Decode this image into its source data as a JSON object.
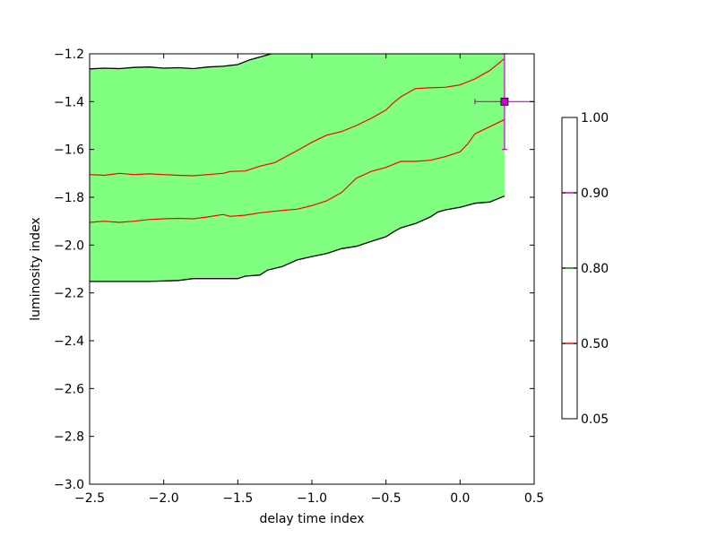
{
  "chart_data": {
    "type": "area",
    "title": "",
    "xlabel": "delay time index",
    "ylabel": "luminosity index",
    "xlim": [
      -2.5,
      0.5
    ],
    "ylim": [
      -3.0,
      -1.2
    ],
    "xticks": [
      -2.5,
      -2.0,
      -1.5,
      -1.0,
      -0.5,
      0.0,
      0.5
    ],
    "xtick_labels": [
      "−2.5",
      "−2.0",
      "−1.5",
      "−1.0",
      "−0.5",
      "0.0",
      "0.5"
    ],
    "yticks": [
      -3.0,
      -2.8,
      -2.6,
      -2.4,
      -2.2,
      -2.0,
      -1.8,
      -1.6,
      -1.4,
      -1.2
    ],
    "ytick_labels": [
      "−3.0",
      "−2.8",
      "−2.6",
      "−2.4",
      "−2.2",
      "−2.0",
      "−1.8",
      "−1.6",
      "−1.4",
      "−1.2"
    ],
    "grid": false,
    "fill_color": "#80ff80",
    "outer_contour_color": "#000000",
    "inner_contour_color": "#ff0000",
    "outer_upper": [
      [
        -2.5,
        -1.263
      ],
      [
        -2.4,
        -1.26
      ],
      [
        -2.3,
        -1.262
      ],
      [
        -2.2,
        -1.257
      ],
      [
        -2.1,
        -1.255
      ],
      [
        -2.0,
        -1.26
      ],
      [
        -1.9,
        -1.258
      ],
      [
        -1.8,
        -1.262
      ],
      [
        -1.7,
        -1.255
      ],
      [
        -1.6,
        -1.252
      ],
      [
        -1.5,
        -1.245
      ],
      [
        -1.42,
        -1.225
      ],
      [
        -1.3,
        -1.205
      ],
      [
        -1.25,
        -1.195
      ]
    ],
    "outer_lower": [
      [
        -2.5,
        -2.152
      ],
      [
        -2.3,
        -2.152
      ],
      [
        -2.1,
        -2.152
      ],
      [
        -1.9,
        -2.148
      ],
      [
        -1.8,
        -2.14
      ],
      [
        -1.6,
        -2.14
      ],
      [
        -1.5,
        -2.14
      ],
      [
        -1.45,
        -2.13
      ],
      [
        -1.35,
        -2.125
      ],
      [
        -1.3,
        -2.105
      ],
      [
        -1.2,
        -2.09
      ],
      [
        -1.1,
        -2.062
      ],
      [
        -1.0,
        -2.048
      ],
      [
        -0.9,
        -2.035
      ],
      [
        -0.8,
        -2.015
      ],
      [
        -0.7,
        -2.005
      ],
      [
        -0.6,
        -1.985
      ],
      [
        -0.5,
        -1.965
      ],
      [
        -0.45,
        -1.945
      ],
      [
        -0.4,
        -1.928
      ],
      [
        -0.3,
        -1.91
      ],
      [
        -0.2,
        -1.882
      ],
      [
        -0.15,
        -1.862
      ],
      [
        -0.1,
        -1.853
      ],
      [
        0.0,
        -1.842
      ],
      [
        0.1,
        -1.825
      ],
      [
        0.2,
        -1.82
      ],
      [
        0.3,
        -1.795
      ]
    ],
    "inner_upper": [
      [
        -2.5,
        -1.705
      ],
      [
        -2.4,
        -1.708
      ],
      [
        -2.3,
        -1.7
      ],
      [
        -2.2,
        -1.705
      ],
      [
        -2.1,
        -1.702
      ],
      [
        -2.0,
        -1.705
      ],
      [
        -1.9,
        -1.708
      ],
      [
        -1.8,
        -1.71
      ],
      [
        -1.7,
        -1.705
      ],
      [
        -1.6,
        -1.7
      ],
      [
        -1.55,
        -1.692
      ],
      [
        -1.45,
        -1.69
      ],
      [
        -1.35,
        -1.67
      ],
      [
        -1.25,
        -1.655
      ],
      [
        -1.1,
        -1.605
      ],
      [
        -1.0,
        -1.57
      ],
      [
        -0.9,
        -1.54
      ],
      [
        -0.8,
        -1.525
      ],
      [
        -0.7,
        -1.5
      ],
      [
        -0.6,
        -1.47
      ],
      [
        -0.5,
        -1.435
      ],
      [
        -0.45,
        -1.405
      ],
      [
        -0.4,
        -1.38
      ],
      [
        -0.3,
        -1.345
      ],
      [
        -0.2,
        -1.342
      ],
      [
        -0.1,
        -1.34
      ],
      [
        0.0,
        -1.33
      ],
      [
        0.1,
        -1.305
      ],
      [
        0.2,
        -1.27
      ],
      [
        0.3,
        -1.22
      ]
    ],
    "inner_lower": [
      [
        -2.5,
        -1.905
      ],
      [
        -2.4,
        -1.9
      ],
      [
        -2.3,
        -1.905
      ],
      [
        -2.2,
        -1.9
      ],
      [
        -2.1,
        -1.893
      ],
      [
        -2.0,
        -1.89
      ],
      [
        -1.9,
        -1.888
      ],
      [
        -1.8,
        -1.89
      ],
      [
        -1.7,
        -1.882
      ],
      [
        -1.6,
        -1.872
      ],
      [
        -1.55,
        -1.88
      ],
      [
        -1.45,
        -1.875
      ],
      [
        -1.35,
        -1.865
      ],
      [
        -1.2,
        -1.855
      ],
      [
        -1.1,
        -1.85
      ],
      [
        -1.0,
        -1.835
      ],
      [
        -0.9,
        -1.815
      ],
      [
        -0.8,
        -1.78
      ],
      [
        -0.7,
        -1.72
      ],
      [
        -0.6,
        -1.692
      ],
      [
        -0.5,
        -1.675
      ],
      [
        -0.4,
        -1.65
      ],
      [
        -0.3,
        -1.65
      ],
      [
        -0.2,
        -1.645
      ],
      [
        -0.1,
        -1.63
      ],
      [
        0.0,
        -1.61
      ],
      [
        0.05,
        -1.578
      ],
      [
        0.1,
        -1.535
      ],
      [
        0.2,
        -1.505
      ],
      [
        0.3,
        -1.475
      ]
    ],
    "fill_right_x": 0.3,
    "fill_right_top_y": -1.2,
    "fill_right_bottom_y": -1.79,
    "marker": {
      "x": 0.3,
      "y": -1.4,
      "xerr": [
        0.2,
        0.2
      ],
      "yerr": [
        0.2,
        0.2
      ],
      "color": "#cc00cc"
    },
    "colorbar": {
      "tick_labels": [
        "0.05",
        "0.50",
        "0.80",
        "0.90",
        "1.00"
      ],
      "levels": [
        {
          "label": "0.50",
          "color": "#ff0000"
        },
        {
          "label": "0.80",
          "color": "#008000"
        },
        {
          "label": "0.90",
          "color": "#cc00cc"
        }
      ]
    }
  }
}
